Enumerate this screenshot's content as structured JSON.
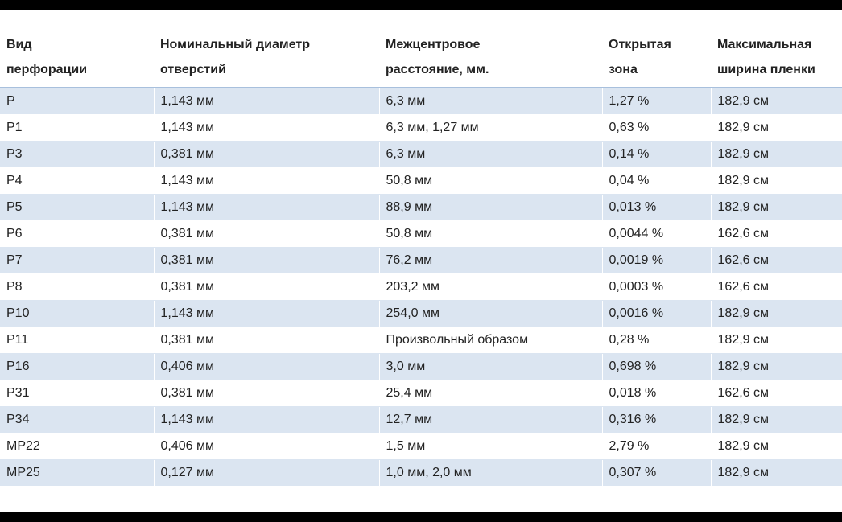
{
  "table": {
    "headers": [
      [
        "Вид",
        "перфорации"
      ],
      [
        "Номинальный диаметр",
        "отверстий"
      ],
      [
        "Межцентровое",
        "расстояние, мм."
      ],
      [
        "Открытая",
        "зона"
      ],
      [
        "Максимальная",
        "ширина пленки"
      ]
    ],
    "rows": [
      [
        "P",
        "1,143 мм",
        "6,3 мм",
        "1,27 %",
        "182,9 см"
      ],
      [
        "P1",
        "1,143 мм",
        "6,3 мм, 1,27 мм",
        "0,63 %",
        "182,9 см"
      ],
      [
        "P3",
        "0,381 мм",
        "6,3 мм",
        "0,14 %",
        "182,9 см"
      ],
      [
        "P4",
        "1,143 мм",
        "50,8 мм",
        "0,04 %",
        "182,9 см"
      ],
      [
        "P5",
        "1,143 мм",
        "88,9 мм",
        "0,013 %",
        "182,9 см"
      ],
      [
        "P6",
        "0,381 мм",
        "50,8 мм",
        "0,0044 %",
        "162,6 см"
      ],
      [
        "P7",
        "0,381 мм",
        "76,2 мм",
        "0,0019 %",
        "162,6 см"
      ],
      [
        "P8",
        "0,381 мм",
        "203,2 мм",
        "0,0003 %",
        "162,6 см"
      ],
      [
        "P10",
        "1,143 мм",
        "254,0 мм",
        "0,0016 %",
        "182,9 см"
      ],
      [
        "P11",
        "0,381 мм",
        "Произвольный образом",
        "0,28 %",
        "182,9 см"
      ],
      [
        "P16",
        "0,406 мм",
        "3,0 мм",
        "0,698 %",
        "182,9 см"
      ],
      [
        "P31",
        "0,381 мм",
        "25,4 мм",
        "0,018 %",
        "162,6 см"
      ],
      [
        "P34",
        "1,143 мм",
        "12,7 мм",
        "0,316 %",
        "182,9 см"
      ],
      [
        "MP22",
        "0,406 мм",
        "1,5 мм",
        "2,79 %",
        "182,9 см"
      ],
      [
        "MP25",
        "0,127 мм",
        "1,0 мм, 2,0 мм",
        "0,307 %",
        "182,9 см"
      ]
    ]
  },
  "colors": {
    "band": "#dbe5f1",
    "header_rule": "#a8c0dd",
    "frame": "#000000"
  }
}
